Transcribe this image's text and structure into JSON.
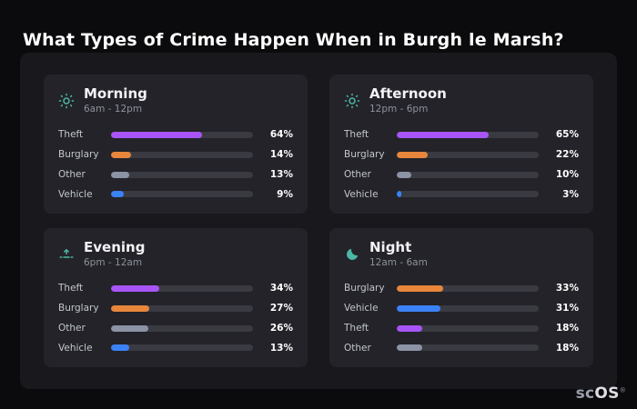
{
  "page": {
    "title": "What Types of Crime Happen When in Burgh le Marsh?"
  },
  "brand": {
    "prefix": "sc",
    "suffix": "OS",
    "mark": "®"
  },
  "colors": {
    "icon_accent": "#4db6a4",
    "theft": "#a855f7",
    "burglary": "#e8863b",
    "other": "#8b93a5",
    "vehicle": "#3b82f6",
    "bar_track": "#3a3b42",
    "panel_bg": "#19191d",
    "card_bg": "#232329",
    "page_bg": "#0b0b0d"
  },
  "chart_data": [
    {
      "type": "bar",
      "title": "Morning",
      "subtitle": "6am - 12pm",
      "icon": "sun-icon",
      "categories": [
        "Theft",
        "Burglary",
        "Other",
        "Vehicle"
      ],
      "values": [
        64,
        14,
        13,
        9
      ],
      "unit": "%",
      "xlim": [
        0,
        100
      ],
      "bar_colors": [
        "#a855f7",
        "#e8863b",
        "#8b93a5",
        "#3b82f6"
      ]
    },
    {
      "type": "bar",
      "title": "Afternoon",
      "subtitle": "12pm - 6pm",
      "icon": "sun-icon",
      "categories": [
        "Theft",
        "Burglary",
        "Other",
        "Vehicle"
      ],
      "values": [
        65,
        22,
        10,
        3
      ],
      "unit": "%",
      "xlim": [
        0,
        100
      ],
      "bar_colors": [
        "#a855f7",
        "#e8863b",
        "#8b93a5",
        "#3b82f6"
      ]
    },
    {
      "type": "bar",
      "title": "Evening",
      "subtitle": "6pm - 12am",
      "icon": "sunset-icon",
      "categories": [
        "Theft",
        "Burglary",
        "Other",
        "Vehicle"
      ],
      "values": [
        34,
        27,
        26,
        13
      ],
      "unit": "%",
      "xlim": [
        0,
        100
      ],
      "bar_colors": [
        "#a855f7",
        "#e8863b",
        "#8b93a5",
        "#3b82f6"
      ]
    },
    {
      "type": "bar",
      "title": "Night",
      "subtitle": "12am - 6am",
      "icon": "moon-icon",
      "categories": [
        "Burglary",
        "Vehicle",
        "Theft",
        "Other"
      ],
      "values": [
        33,
        31,
        18,
        18
      ],
      "unit": "%",
      "xlim": [
        0,
        100
      ],
      "bar_colors": [
        "#e8863b",
        "#3b82f6",
        "#a855f7",
        "#8b93a5"
      ]
    }
  ]
}
